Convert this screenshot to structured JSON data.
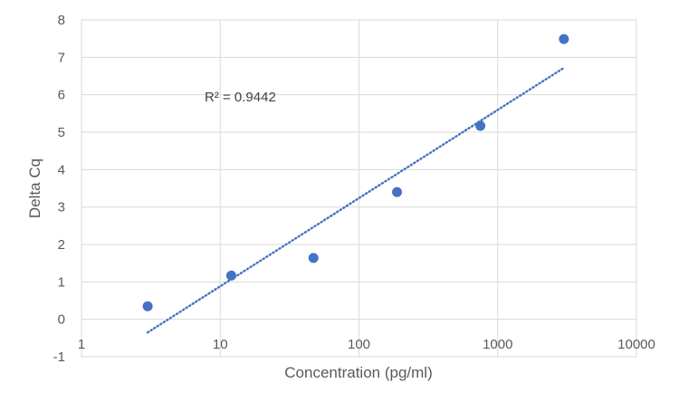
{
  "chart_data": {
    "type": "scatter",
    "title": "",
    "xlabel": "Concentration (pg/ml)",
    "ylabel": "Delta Cq",
    "x_scale": "log",
    "xlim": [
      1,
      10000
    ],
    "ylim": [
      -1,
      8
    ],
    "x_ticks": [
      "1",
      "10",
      "100",
      "1000",
      "10000"
    ],
    "y_ticks": [
      "-1",
      "0",
      "1",
      "2",
      "3",
      "4",
      "5",
      "6",
      "7",
      "8"
    ],
    "grid": true,
    "legend": "none",
    "series": [
      {
        "points": [
          {
            "x": 3,
            "y": 0.35
          },
          {
            "x": 12,
            "y": 1.17
          },
          {
            "x": 47,
            "y": 1.64
          },
          {
            "x": 188,
            "y": 3.4
          },
          {
            "x": 750,
            "y": 5.17
          },
          {
            "x": 3000,
            "y": 7.49
          }
        ],
        "color": "#4472C4"
      }
    ],
    "trendline": {
      "type": "logarithmic",
      "style": "dotted",
      "color": "#4472C4",
      "from": {
        "x": 3,
        "y": -0.35
      },
      "to": {
        "x": 3000,
        "y": 6.72
      }
    },
    "annotation": {
      "text": "R² = 0.9442"
    }
  }
}
